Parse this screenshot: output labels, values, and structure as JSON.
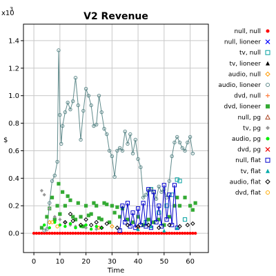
{
  "chart_data": {
    "type": "line",
    "title": "V2 Revenue",
    "xlabel": "Time",
    "ylabel": "$",
    "y_multiplier_label": "x10",
    "y_multiplier_exponent": "3",
    "xlim": [
      -4,
      67
    ],
    "ylim": [
      -0.14,
      1.52
    ],
    "xticks": [
      0,
      10,
      20,
      30,
      40,
      50,
      60
    ],
    "yticks": [
      0.0,
      0.2,
      0.4,
      0.6,
      0.8,
      1.0,
      1.2,
      1.4
    ],
    "ytick_labels": [
      "0.0",
      "0.2",
      "0.4",
      "0.6",
      "0.8",
      "1.0",
      "1.2",
      "1.4"
    ],
    "grid": true,
    "legend_position": "right",
    "series": [
      {
        "name": "null, null",
        "color": "#ff0000",
        "marker": "circle-filled",
        "connected": false,
        "points": []
      },
      {
        "name": "null, lioneer",
        "color": "#0000ff",
        "marker": "x",
        "connected": false,
        "points": []
      },
      {
        "name": "tv, null",
        "color": "#00a0a0",
        "marker": "square-open",
        "connected": false,
        "points": [
          [
            43,
            0.08
          ],
          [
            45,
            0.32
          ],
          [
            48,
            0.15
          ],
          [
            51,
            0.2
          ],
          [
            53,
            0.28
          ],
          [
            55,
            0.39
          ],
          [
            56,
            0.38
          ],
          [
            58,
            0.1
          ]
        ]
      },
      {
        "name": "tv, lioneer",
        "color": "#000000",
        "marker": "triangle-filled",
        "connected": false,
        "points": []
      },
      {
        "name": "audio, null",
        "color": "#ff9900",
        "marker": "diamond-open",
        "connected": false,
        "points": [
          [
            6,
            0.08
          ],
          [
            18,
            0.06
          ],
          [
            25,
            0.04
          ],
          [
            30,
            0.05
          ],
          [
            40,
            0.04
          ]
        ]
      },
      {
        "name": "audio, lioneer",
        "color": "#5f8a8b",
        "marker": "circle-open",
        "connected": true,
        "points": [
          [
            4,
            0.02
          ],
          [
            5,
            0.03
          ],
          [
            6,
            0.22
          ],
          [
            7,
            0.38
          ],
          [
            8,
            0.42
          ],
          [
            9,
            0.52
          ],
          [
            9.5,
            1.33
          ],
          [
            10,
            0.86
          ],
          [
            10.5,
            0.65
          ],
          [
            11,
            0.78
          ],
          [
            12,
            0.88
          ],
          [
            13,
            0.95
          ],
          [
            14,
            0.9
          ],
          [
            15,
            0.96
          ],
          [
            16,
            1.13
          ],
          [
            17,
            0.93
          ],
          [
            18,
            0.68
          ],
          [
            19,
            0.89
          ],
          [
            20,
            1.05
          ],
          [
            21,
            1.0
          ],
          [
            22,
            0.93
          ],
          [
            23,
            0.78
          ],
          [
            24,
            0.79
          ],
          [
            25,
            1.0
          ],
          [
            26,
            0.88
          ],
          [
            27,
            0.76
          ],
          [
            28,
            0.72
          ],
          [
            29,
            0.6
          ],
          [
            30,
            0.56
          ],
          [
            31,
            0.41
          ],
          [
            32,
            0.6
          ],
          [
            33,
            0.62
          ],
          [
            34,
            0.6
          ],
          [
            35,
            0.74
          ],
          [
            36,
            0.65
          ],
          [
            37,
            0.72
          ],
          [
            38,
            0.58
          ],
          [
            39,
            0.68
          ],
          [
            40,
            0.54
          ],
          [
            41,
            0.48
          ],
          [
            42,
            0.26
          ],
          [
            43,
            0.28
          ],
          [
            44,
            0.31
          ],
          [
            45,
            0.32
          ],
          [
            46,
            0.3
          ],
          [
            47,
            0.25
          ],
          [
            48,
            0.34
          ],
          [
            49,
            0.3
          ],
          [
            50,
            0.32
          ],
          [
            51,
            0.26
          ],
          [
            52,
            0.38
          ],
          [
            53,
            0.56
          ],
          [
            54,
            0.66
          ],
          [
            55,
            0.7
          ],
          [
            56,
            0.66
          ],
          [
            57,
            0.62
          ],
          [
            58,
            0.6
          ],
          [
            59,
            0.66
          ],
          [
            60,
            0.7
          ],
          [
            61,
            0.58
          ]
        ]
      },
      {
        "name": "dvd, null",
        "color": "#ff8040",
        "marker": "plus",
        "connected": false,
        "points": []
      },
      {
        "name": "dvd, lioneer",
        "color": "#33aa33",
        "marker": "square-filled",
        "connected": false,
        "points": [
          [
            3,
            0.04
          ],
          [
            5,
            0.12
          ],
          [
            6,
            0.18
          ],
          [
            7,
            0.26
          ],
          [
            8,
            0.1
          ],
          [
            9,
            0.2
          ],
          [
            9.5,
            0.36
          ],
          [
            10,
            0.14
          ],
          [
            11,
            0.3
          ],
          [
            12,
            0.2
          ],
          [
            13,
            0.27
          ],
          [
            14,
            0.24
          ],
          [
            15,
            0.12
          ],
          [
            16,
            0.1
          ],
          [
            17,
            0.22
          ],
          [
            18,
            0.12
          ],
          [
            19,
            0.05
          ],
          [
            20,
            0.2
          ],
          [
            21,
            0.13
          ],
          [
            22,
            0.14
          ],
          [
            23,
            0.22
          ],
          [
            24,
            0.2
          ],
          [
            25,
            0.11
          ],
          [
            26,
            0.1
          ],
          [
            27,
            0.22
          ],
          [
            28,
            0.21
          ],
          [
            29,
            0.08
          ],
          [
            30,
            0.2
          ],
          [
            31,
            0.15
          ],
          [
            32,
            0.19
          ],
          [
            33,
            0.12
          ],
          [
            34,
            0.18
          ],
          [
            36,
            0.1
          ],
          [
            38,
            0.08
          ],
          [
            40,
            0.12
          ],
          [
            42,
            0.06
          ],
          [
            44,
            0.1
          ],
          [
            46,
            0.08
          ],
          [
            48,
            0.1
          ],
          [
            50,
            0.06
          ],
          [
            52,
            0.12
          ],
          [
            54,
            0.2
          ],
          [
            55,
            0.26
          ],
          [
            56,
            0.2
          ],
          [
            58,
            0.26
          ],
          [
            60,
            0.2
          ],
          [
            61,
            0.17
          ],
          [
            62,
            0.22
          ]
        ]
      },
      {
        "name": "null, pg",
        "color": "#aa4422",
        "marker": "triangle-open",
        "connected": false,
        "points": []
      },
      {
        "name": "tv, pg",
        "color": "#999999",
        "marker": "diamond-filled",
        "connected": false,
        "points": [
          [
            3,
            0.31
          ],
          [
            4,
            0.28
          ],
          [
            6,
            0.18
          ],
          [
            8,
            0.12
          ],
          [
            10,
            0.1
          ],
          [
            12,
            0.08
          ],
          [
            14,
            0.06
          ],
          [
            16,
            0.05
          ],
          [
            20,
            0.04
          ],
          [
            24,
            0.03
          ]
        ]
      },
      {
        "name": "audio, pg",
        "color": "#00ee00",
        "marker": "circle-filled",
        "connected": false,
        "points": [
          [
            4,
            0.06
          ],
          [
            6,
            0.04
          ],
          [
            8,
            0.08
          ],
          [
            10,
            0.06
          ],
          [
            12,
            0.05
          ],
          [
            14,
            0.07
          ],
          [
            16,
            0.04
          ],
          [
            18,
            0.05
          ],
          [
            20,
            0.06
          ],
          [
            22,
            0.03
          ],
          [
            24,
            0.05
          ],
          [
            26,
            0.04
          ]
        ]
      },
      {
        "name": "dvd, pg",
        "color": "#ee0000",
        "marker": "x",
        "connected": false,
        "points": []
      },
      {
        "name": "null, flat",
        "color": "#0000cc",
        "marker": "square-open",
        "connected": true,
        "points": [
          [
            33,
            0.02
          ],
          [
            34,
            0.2
          ],
          [
            35,
            0.08
          ],
          [
            36,
            0.22
          ],
          [
            37,
            0.05
          ],
          [
            38,
            0.15
          ],
          [
            39,
            0.04
          ],
          [
            40,
            0.18
          ],
          [
            41,
            0.06
          ],
          [
            42,
            0.22
          ],
          [
            43,
            0.05
          ],
          [
            44,
            0.32
          ],
          [
            45,
            0.04
          ],
          [
            46,
            0.3
          ],
          [
            47,
            0.08
          ],
          [
            48,
            0.2
          ],
          [
            49,
            0.05
          ],
          [
            50,
            0.35
          ],
          [
            51,
            0.1
          ],
          [
            52,
            0.28
          ],
          [
            53,
            0.06
          ],
          [
            54,
            0.35
          ],
          [
            55,
            0.04
          ]
        ]
      },
      {
        "name": "tv, flat",
        "color": "#00aaaa",
        "marker": "triangle-filled",
        "connected": false,
        "points": [
          [
            40,
            0.03
          ],
          [
            45,
            0.05
          ],
          [
            50,
            0.02
          ],
          [
            55,
            0.04
          ]
        ]
      },
      {
        "name": "audio, flat",
        "color": "#000000",
        "marker": "diamond-open",
        "connected": false,
        "points": [
          [
            12,
            0.08
          ],
          [
            14,
            0.14
          ],
          [
            15,
            0.09
          ],
          [
            18,
            0.06
          ],
          [
            20,
            0.1
          ],
          [
            22,
            0.06
          ],
          [
            24,
            0.08
          ],
          [
            26,
            0.04
          ],
          [
            28,
            0.07
          ],
          [
            32,
            0.04
          ],
          [
            36,
            0.06
          ],
          [
            40,
            0.05
          ],
          [
            44,
            0.06
          ],
          [
            48,
            0.04
          ],
          [
            52,
            0.06
          ],
          [
            56,
            0.05
          ],
          [
            59,
            0.06
          ],
          [
            61,
            0.07
          ]
        ]
      },
      {
        "name": "dvd, flat",
        "color": "#ffaa00",
        "marker": "circle-open",
        "connected": false,
        "points": [
          [
            7,
            0.08
          ],
          [
            9,
            0.05
          ]
        ]
      }
    ]
  }
}
